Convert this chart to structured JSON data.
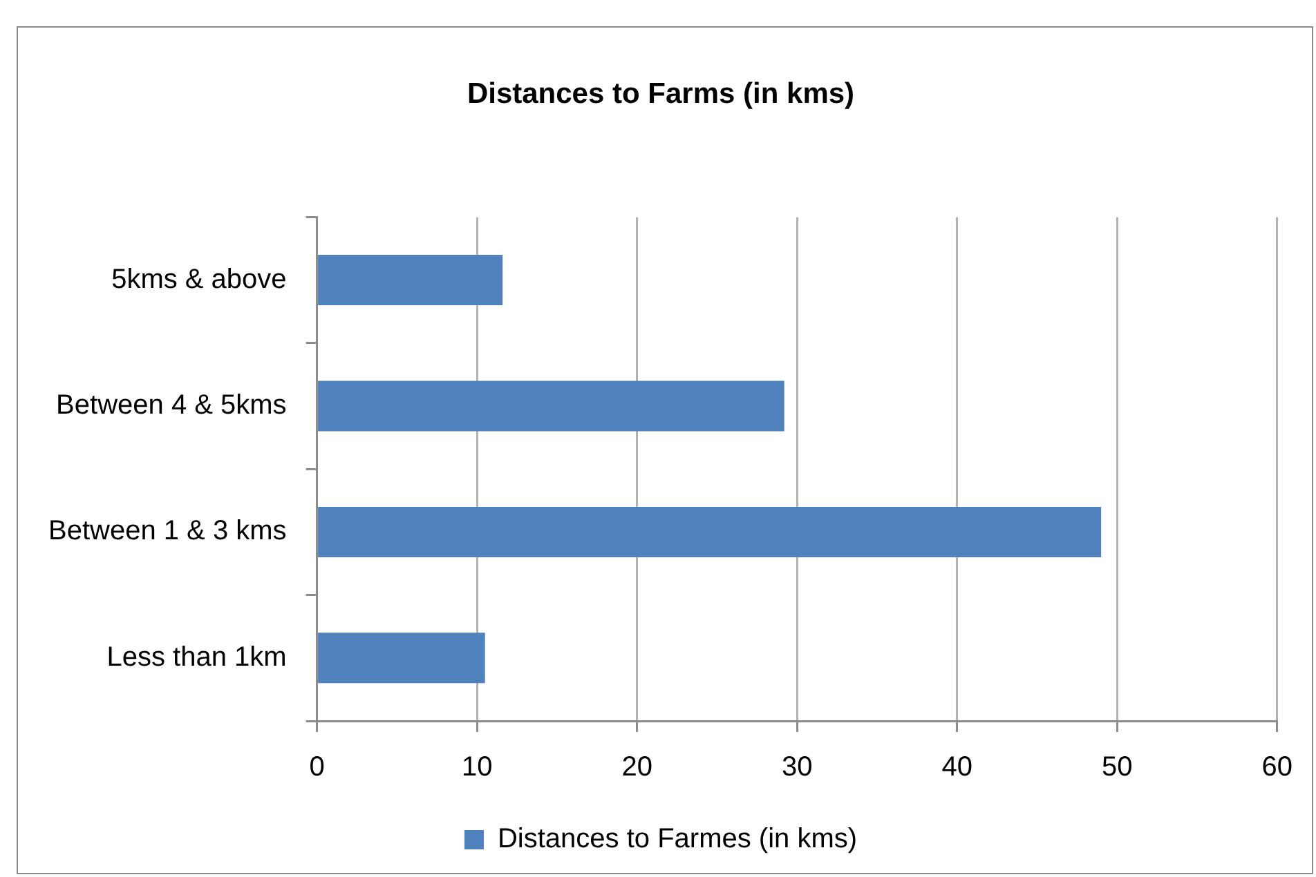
{
  "chart_data": {
    "type": "bar",
    "orientation": "horizontal",
    "title": "Distances to Farms (in kms)",
    "categories": [
      "5kms & above",
      "Between 4 & 5kms",
      "Between 1 & 3 kms",
      "Less than 1km"
    ],
    "series": [
      {
        "name": "Distances to Farmes (in kms)",
        "color": "#4f81bd",
        "values": [
          11.6,
          29.2,
          49.0,
          10.5
        ]
      }
    ],
    "xlim": [
      0,
      60
    ],
    "xticks": [
      0,
      10,
      20,
      30,
      40,
      50,
      60
    ],
    "grid": "x",
    "legend": "bottom"
  }
}
